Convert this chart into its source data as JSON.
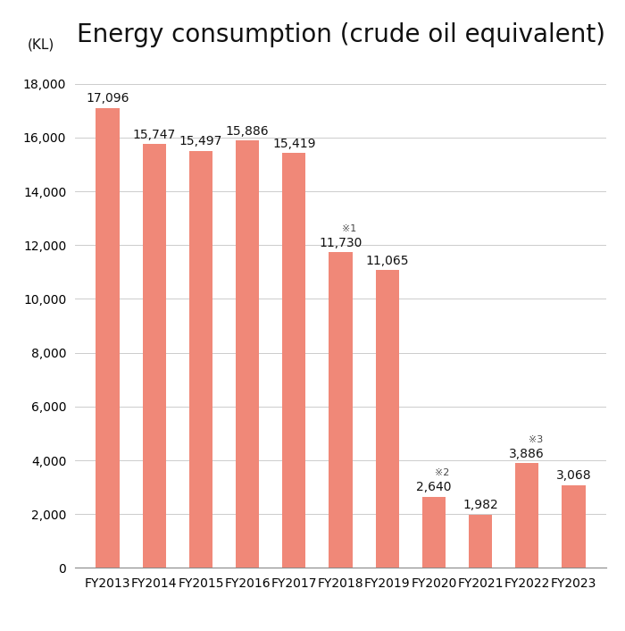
{
  "title": "Energy consumption (crude oil equivalent)",
  "ylabel": "(KL)",
  "categories": [
    "FY2013",
    "FY2014",
    "FY2015",
    "FY2016",
    "FY2017",
    "FY2018",
    "FY2019",
    "FY2020",
    "FY2021",
    "FY2022",
    "FY2023"
  ],
  "values": [
    17096,
    15747,
    15497,
    15886,
    15419,
    11730,
    11065,
    2640,
    1982,
    3886,
    3068
  ],
  "bar_color": "#F08878",
  "annotations": [
    {
      "index": 0,
      "label": "17,096",
      "note": ""
    },
    {
      "index": 1,
      "label": "15,747",
      "note": ""
    },
    {
      "index": 2,
      "label": "15,497",
      "note": ""
    },
    {
      "index": 3,
      "label": "15,886",
      "note": ""
    },
    {
      "index": 4,
      "label": "15,419",
      "note": ""
    },
    {
      "index": 5,
      "label": "11,730",
      "note": "※1"
    },
    {
      "index": 6,
      "label": "11,065",
      "note": ""
    },
    {
      "index": 7,
      "label": "2,640",
      "note": "※2"
    },
    {
      "index": 8,
      "label": "1,982",
      "note": ""
    },
    {
      "index": 9,
      "label": "3,886",
      "note": "※3"
    },
    {
      "index": 10,
      "label": "3,068",
      "note": ""
    }
  ],
  "ylim": [
    0,
    19000
  ],
  "yticks": [
    0,
    2000,
    4000,
    6000,
    8000,
    10000,
    12000,
    14000,
    16000,
    18000
  ],
  "background_color": "#ffffff",
  "grid_color": "#cccccc",
  "title_fontsize": 20,
  "label_fontsize": 10,
  "tick_fontsize": 10,
  "ylabel_fontsize": 11,
  "bar_width": 0.5,
  "note_fontsize": 8
}
